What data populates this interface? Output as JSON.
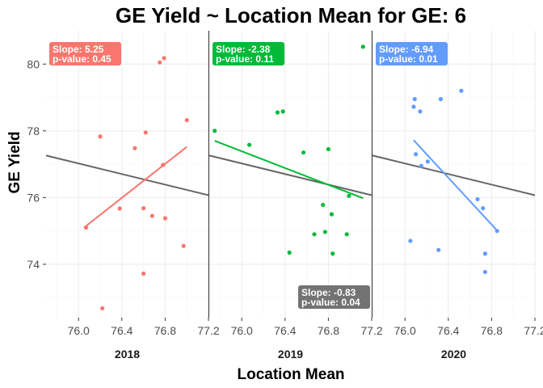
{
  "chart_data": {
    "type": "scatter",
    "title": "GE Yield ~ Location Mean for GE: 6",
    "xlabel": "Location Mean",
    "ylabel": "GE Yield",
    "ylim": [
      72.4,
      81.0
    ],
    "y_ticks": [
      74,
      76,
      78,
      80
    ],
    "y_tick_labels": [
      "74",
      "76",
      "78",
      "80"
    ],
    "overall_line": {
      "color": "#666666",
      "x": [
        75.7,
        77.2
      ],
      "y": [
        77.26,
        76.07
      ],
      "slope": -0.83,
      "p_value": 0.04
    },
    "overall_annotation": {
      "slope_text": "Slope: -0.83",
      "p_text": "p-value: 0.04",
      "color": "#737373",
      "panel": 1
    },
    "panels": [
      {
        "label": "2018",
        "xlim": [
          75.7,
          77.2
        ],
        "x_ticks": [
          76.0,
          76.4,
          76.8,
          77.2
        ],
        "x_tick_labels": [
          "76.0",
          "76.4",
          "76.8",
          "77.2"
        ],
        "color": "#F8766D",
        "points": [
          [
            76.07,
            75.1
          ],
          [
            76.2,
            77.83
          ],
          [
            76.22,
            72.68
          ],
          [
            76.38,
            75.67
          ],
          [
            76.52,
            77.48
          ],
          [
            76.6,
            73.72
          ],
          [
            76.6,
            75.68
          ],
          [
            76.62,
            77.95
          ],
          [
            76.68,
            75.45
          ],
          [
            76.75,
            80.05
          ],
          [
            76.79,
            80.18
          ],
          [
            76.78,
            76.98
          ],
          [
            76.8,
            75.38
          ],
          [
            76.97,
            74.55
          ],
          [
            77.0,
            78.32
          ]
        ],
        "fit": {
          "x": [
            76.05,
            77.0
          ],
          "y": [
            75.1,
            77.52
          ]
        },
        "annotation": {
          "slope_text": "Slope: 5.25",
          "p_text": "p-value: 0.45"
        }
      },
      {
        "label": "2019",
        "xlim": [
          75.7,
          77.2
        ],
        "x_ticks": [
          76.0,
          76.4,
          76.8,
          77.2
        ],
        "x_tick_labels": [
          "76.0",
          "76.4",
          "76.8",
          "77.2"
        ],
        "color": "#00BA38",
        "points": [
          [
            75.75,
            78.0
          ],
          [
            76.07,
            77.58
          ],
          [
            76.33,
            78.55
          ],
          [
            76.38,
            78.58
          ],
          [
            76.44,
            74.35
          ],
          [
            76.57,
            77.35
          ],
          [
            76.67,
            74.9
          ],
          [
            76.75,
            75.78
          ],
          [
            76.77,
            74.97
          ],
          [
            76.8,
            77.45
          ],
          [
            76.83,
            75.5
          ],
          [
            76.84,
            74.32
          ],
          [
            76.97,
            74.9
          ],
          [
            76.99,
            76.05
          ],
          [
            77.12,
            80.52
          ]
        ],
        "fit": {
          "x": [
            75.75,
            77.12
          ],
          "y": [
            77.7,
            75.98
          ]
        },
        "annotation": {
          "slope_text": "Slope: -2.38",
          "p_text": "p-value: 0.11"
        }
      },
      {
        "label": "2020",
        "xlim": [
          75.7,
          77.2
        ],
        "x_ticks": [
          76.0,
          76.4,
          76.8,
          77.2
        ],
        "x_tick_labels": [
          "76.0",
          "76.4",
          "76.8",
          "77.2"
        ],
        "color": "#619CFF",
        "points": [
          [
            76.05,
            74.7
          ],
          [
            76.08,
            78.72
          ],
          [
            76.09,
            78.95
          ],
          [
            76.1,
            77.3
          ],
          [
            76.14,
            78.58
          ],
          [
            76.15,
            76.95
          ],
          [
            76.21,
            77.08
          ],
          [
            76.31,
            74.43
          ],
          [
            76.33,
            78.95
          ],
          [
            76.52,
            79.2
          ],
          [
            76.67,
            75.95
          ],
          [
            76.72,
            75.68
          ],
          [
            76.74,
            74.32
          ],
          [
            76.74,
            73.77
          ],
          [
            76.85,
            75.0
          ]
        ],
        "fit": {
          "x": [
            76.08,
            76.84
          ],
          "y": [
            77.72,
            75.05
          ]
        },
        "annotation": {
          "slope_text": "Slope: -6.94",
          "p_text": "p-value: 0.01"
        }
      }
    ]
  }
}
